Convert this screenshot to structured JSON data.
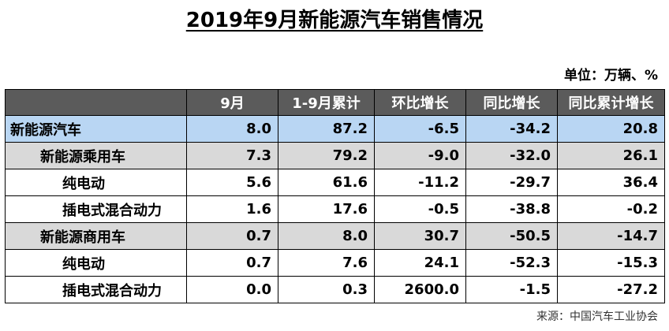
{
  "title": "2019年9月新能源汽车销售情况",
  "unit": "单位：万辆、%",
  "table": {
    "headers": [
      "",
      "9月",
      "1-9月累计",
      "环比增长",
      "同比增长",
      "同比累计增长"
    ],
    "rows": [
      {
        "name": "新能源汽车",
        "level": 0,
        "values": [
          "8.0",
          "87.2",
          "-6.5",
          "-34.2",
          "20.8"
        ]
      },
      {
        "name": "新能源乘用车",
        "level": 1,
        "values": [
          "7.3",
          "79.2",
          "-9.0",
          "-32.0",
          "26.1"
        ]
      },
      {
        "name": "纯电动",
        "level": 2,
        "values": [
          "5.6",
          "61.6",
          "-11.2",
          "-29.7",
          "36.4"
        ]
      },
      {
        "name": "插电式混合动力",
        "level": 2,
        "values": [
          "1.6",
          "17.6",
          "-0.5",
          "-38.8",
          "-0.2"
        ]
      },
      {
        "name": "新能源商用车",
        "level": 1,
        "values": [
          "0.7",
          "8.0",
          "30.7",
          "-50.5",
          "-14.7"
        ]
      },
      {
        "name": "纯电动",
        "level": 2,
        "values": [
          "0.7",
          "7.6",
          "24.1",
          "-52.3",
          "-15.3"
        ]
      },
      {
        "name": "插电式混合动力",
        "level": 2,
        "values": [
          "0.0",
          "0.3",
          "2600.0",
          "-1.5",
          "-27.2"
        ]
      }
    ]
  },
  "source": "来源：中国汽车工业协会",
  "colors": {
    "header_bg": "#5b5b5b",
    "total_row_bg": "#b9d6f3",
    "category_row_bg": "#d9d9d9"
  }
}
